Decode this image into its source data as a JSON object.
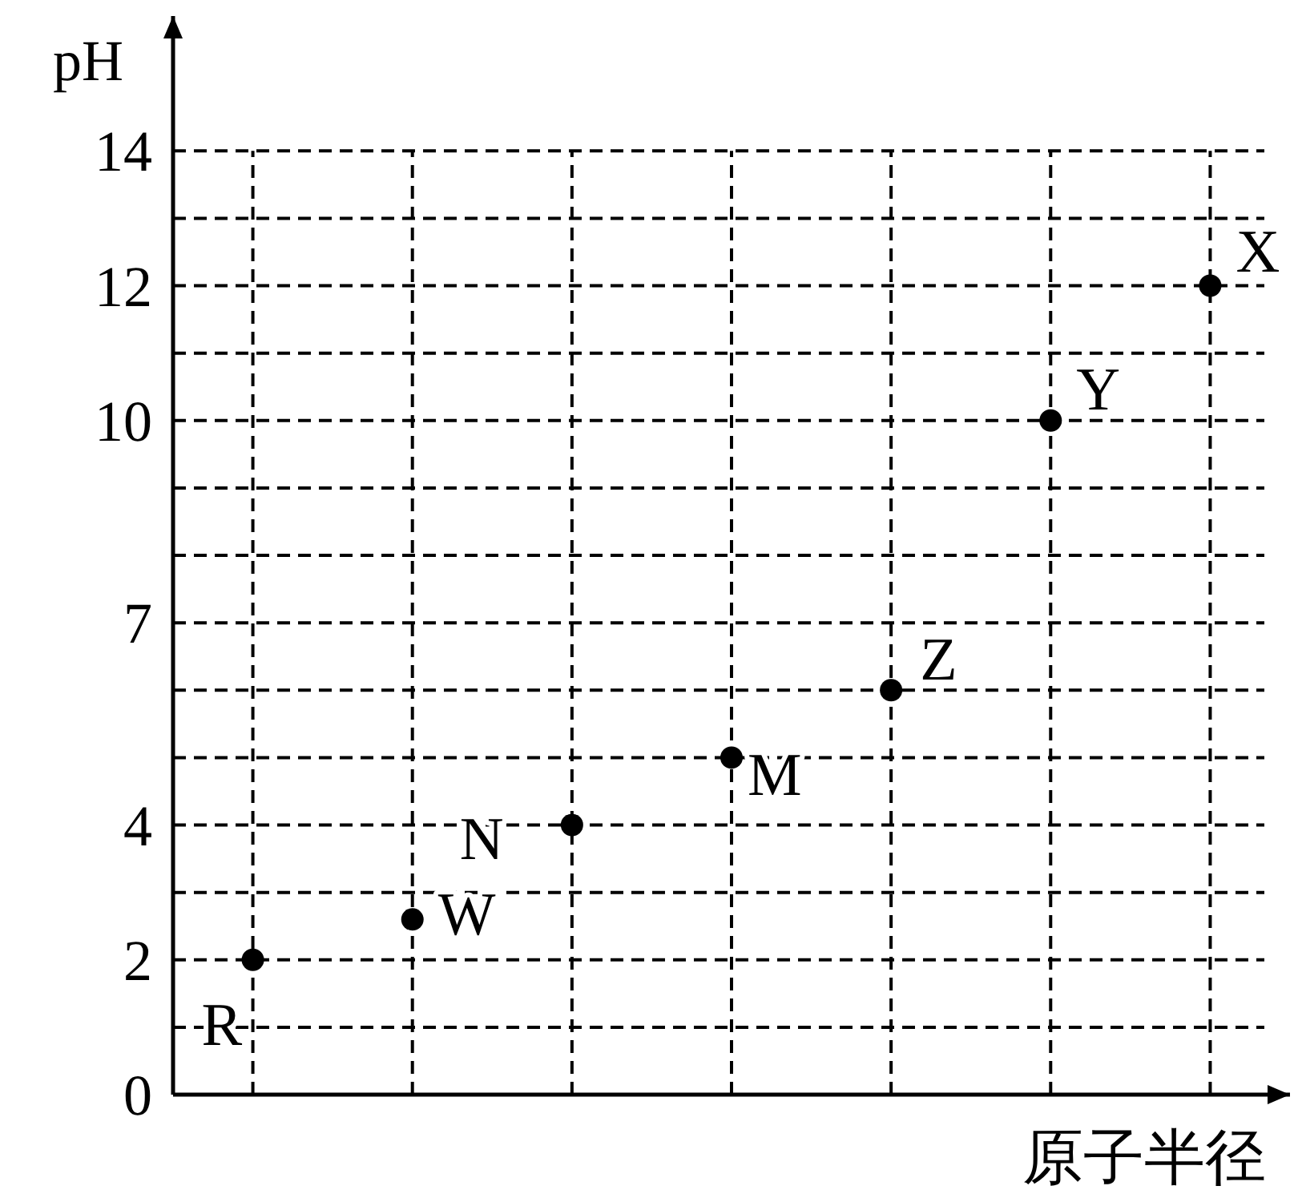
{
  "chart_data": {
    "type": "scatter",
    "xlabel": "原子半径",
    "ylabel": "pH",
    "categories": [
      null,
      null,
      null,
      null,
      null,
      null,
      null
    ],
    "series": [
      {
        "name": "R",
        "color": "#000000",
        "values": [
          2,
          null,
          null,
          null,
          null,
          null,
          null
        ]
      },
      {
        "name": "W",
        "color": "#000000",
        "values": [
          null,
          2.6,
          null,
          null,
          null,
          null,
          null
        ]
      },
      {
        "name": "N",
        "color": "#000000",
        "values": [
          null,
          null,
          4,
          null,
          null,
          null,
          null
        ]
      },
      {
        "name": "M",
        "color": "#000000",
        "values": [
          null,
          null,
          null,
          5,
          null,
          null,
          null
        ]
      },
      {
        "name": "Z",
        "color": "#000000",
        "values": [
          null,
          null,
          null,
          null,
          6,
          null,
          null
        ]
      },
      {
        "name": "Y",
        "color": "#000000",
        "values": [
          null,
          null,
          null,
          null,
          null,
          10,
          null
        ]
      },
      {
        "name": "X",
        "color": "#000000",
        "values": [
          null,
          null,
          null,
          null,
          null,
          null,
          12
        ]
      }
    ],
    "marker": "circle",
    "grid": true,
    "ylim": [
      0,
      16
    ],
    "yticks": [
      0,
      {
        "value": 1,
        "label": null
      },
      2,
      {
        "value": 3,
        "label": null
      },
      4,
      {
        "value": 5,
        "label": null
      },
      {
        "value": 6,
        "label": null
      },
      7,
      {
        "value": 8,
        "label": null
      },
      {
        "value": 9,
        "label": null
      },
      10,
      {
        "value": 11,
        "label": null
      },
      12,
      {
        "value": 13,
        "label": null
      },
      14
    ]
  }
}
